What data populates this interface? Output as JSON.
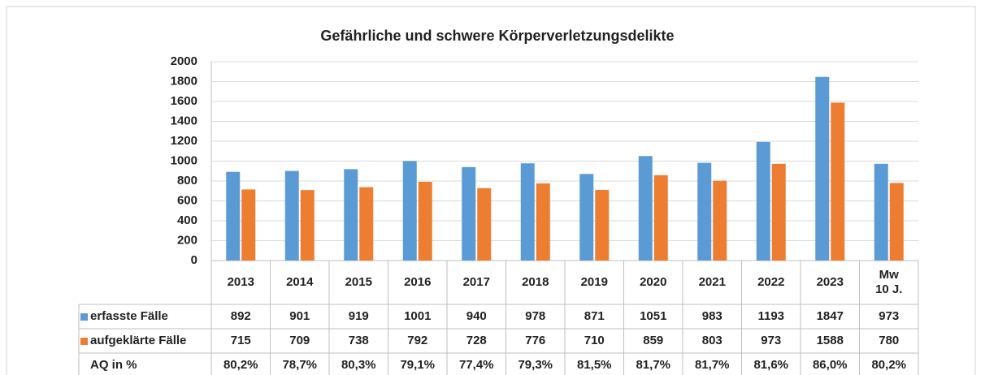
{
  "chart_data": {
    "type": "bar",
    "title": "Gefährliche und schwere Körperverletzungsdelikte",
    "categories": [
      "2013",
      "2014",
      "2015",
      "2016",
      "2017",
      "2018",
      "2019",
      "2020",
      "2021",
      "2022",
      "2023",
      "Mw\n10 J."
    ],
    "series": [
      {
        "name": "erfasste Fälle",
        "color": "#5b9bd5",
        "values": [
          892,
          901,
          919,
          1001,
          940,
          978,
          871,
          1051,
          983,
          1193,
          1847,
          973
        ]
      },
      {
        "name": "aufgeklärte Fälle",
        "color": "#ed7d31",
        "values": [
          715,
          709,
          738,
          792,
          728,
          776,
          710,
          859,
          803,
          973,
          1588,
          780
        ]
      }
    ],
    "table_row": {
      "name": "AQ in %",
      "values": [
        "80,2%",
        "78,7%",
        "80,3%",
        "79,1%",
        "77,4%",
        "79,3%",
        "81,5%",
        "81,7%",
        "81,7%",
        "81,6%",
        "86,0%",
        "80,2%"
      ]
    },
    "ylim": [
      0,
      2000
    ],
    "yticks": [
      0,
      200,
      400,
      600,
      800,
      1000,
      1200,
      1400,
      1600,
      1800,
      2000
    ],
    "grid": true
  }
}
